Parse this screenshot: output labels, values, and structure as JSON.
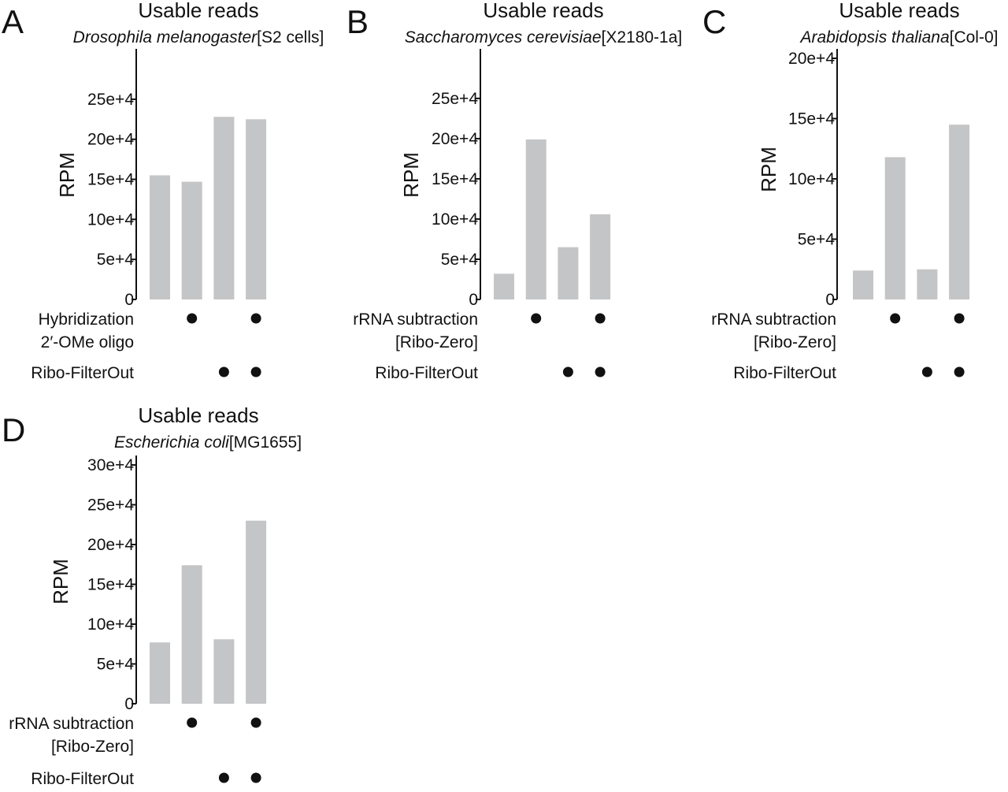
{
  "colors": {
    "bar": "#c4c5c7",
    "axis": "#111111",
    "dot": "#111111"
  },
  "chart_data": [
    {
      "type": "bar",
      "panel": "A",
      "title": "Usable reads",
      "species": "Drosophila melanogaster",
      "strain": "[S2 cells]",
      "ylabel": "RPM",
      "ylim": [
        0,
        300000
      ],
      "ticks": [
        {
          "label": "0",
          "value": 0
        },
        {
          "label": "5e+4",
          "value": 50000
        },
        {
          "label": "10e+4",
          "value": 100000
        },
        {
          "label": "15e+4",
          "value": 150000
        },
        {
          "label": "20e+4",
          "value": 200000
        },
        {
          "label": "25e+4",
          "value": 250000
        }
      ],
      "values": [
        155000,
        147000,
        228000,
        225000
      ],
      "conditions": [
        {
          "lines": [
            "Hybridization",
            "2′-OMe oligo"
          ],
          "on": [
            false,
            true,
            false,
            true
          ]
        },
        {
          "lines": [
            "Ribo-FilterOut"
          ],
          "on": [
            false,
            false,
            true,
            true
          ]
        }
      ]
    },
    {
      "type": "bar",
      "panel": "B",
      "title": "Usable reads",
      "species": "Saccharomyces cerevisiae",
      "strain": "[X2180-1a]",
      "ylabel": "RPM",
      "ylim": [
        0,
        300000
      ],
      "ticks": [
        {
          "label": "0",
          "value": 0
        },
        {
          "label": "5e+4",
          "value": 50000
        },
        {
          "label": "10e+4",
          "value": 100000
        },
        {
          "label": "15e+4",
          "value": 150000
        },
        {
          "label": "20e+4",
          "value": 200000
        },
        {
          "label": "25e+4",
          "value": 250000
        }
      ],
      "values": [
        32000,
        199000,
        65000,
        106000
      ],
      "conditions": [
        {
          "lines": [
            "rRNA subtraction",
            "[Ribo-Zero]"
          ],
          "on": [
            false,
            true,
            false,
            true
          ]
        },
        {
          "lines": [
            "Ribo-FilterOut"
          ],
          "on": [
            false,
            false,
            true,
            true
          ]
        }
      ]
    },
    {
      "type": "bar",
      "panel": "C",
      "title": "Usable reads",
      "species": "Arabidopsis thaliana",
      "strain": "[Col-0]",
      "ylabel": "RPM",
      "ylim": [
        0,
        200000
      ],
      "ticks": [
        {
          "label": "0",
          "value": 0
        },
        {
          "label": "5e+4",
          "value": 50000
        },
        {
          "label": "10e+4",
          "value": 100000
        },
        {
          "label": "15e+4",
          "value": 150000
        },
        {
          "label": "20e+4",
          "value": 200000
        }
      ],
      "values": [
        24000,
        118000,
        25000,
        145000
      ],
      "conditions": [
        {
          "lines": [
            "rRNA subtraction",
            "[Ribo-Zero]"
          ],
          "on": [
            false,
            true,
            false,
            true
          ]
        },
        {
          "lines": [
            "Ribo-FilterOut"
          ],
          "on": [
            false,
            false,
            true,
            true
          ]
        }
      ]
    },
    {
      "type": "bar",
      "panel": "D",
      "title": "Usable reads",
      "species": "Escherichia coli",
      "strain": "[MG1655]",
      "ylabel": "RPM",
      "ylim": [
        0,
        300000
      ],
      "ticks": [
        {
          "label": "0",
          "value": 0
        },
        {
          "label": "5e+4",
          "value": 50000
        },
        {
          "label": "10e+4",
          "value": 100000
        },
        {
          "label": "15e+4",
          "value": 150000
        },
        {
          "label": "20e+4",
          "value": 200000
        },
        {
          "label": "25e+4",
          "value": 250000
        },
        {
          "label": "30e+4",
          "value": 300000
        }
      ],
      "values": [
        77000,
        174000,
        81000,
        230000
      ],
      "conditions": [
        {
          "lines": [
            "rRNA subtraction",
            "[Ribo-Zero]"
          ],
          "on": [
            false,
            true,
            false,
            true
          ]
        },
        {
          "lines": [
            "Ribo-FilterOut"
          ],
          "on": [
            false,
            false,
            true,
            true
          ]
        }
      ]
    }
  ]
}
